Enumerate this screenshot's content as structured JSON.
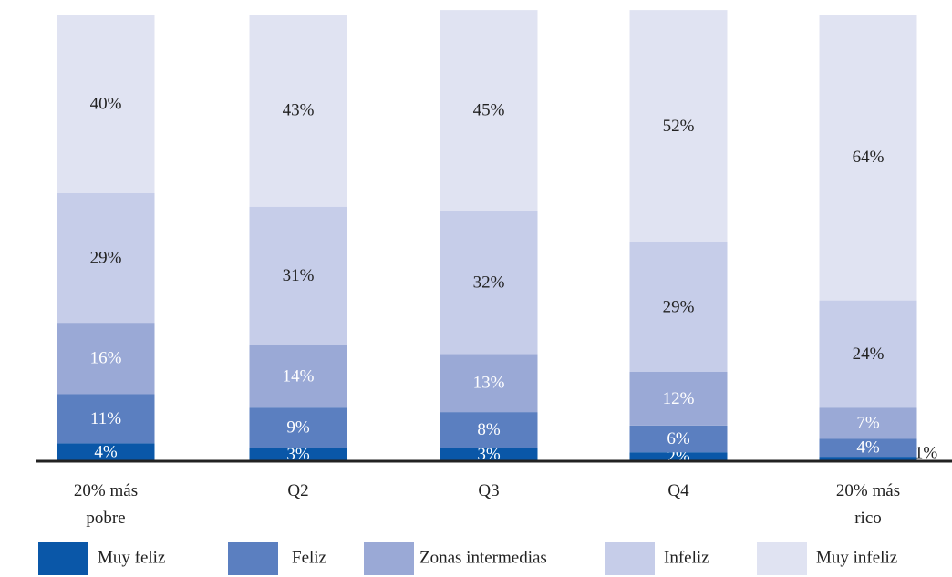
{
  "chart_data": {
    "type": "stacked_bar",
    "categories": [
      "20% más pobre",
      "Q2",
      "Q3",
      "Q4",
      "20% más rico"
    ],
    "series": [
      {
        "name": "Muy feliz",
        "color": "#0a57a8",
        "values": [
          4,
          3,
          3,
          2,
          1
        ],
        "value_labels": [
          "4%",
          "3%",
          "3%",
          "2%",
          "1%"
        ]
      },
      {
        "name": "Feliz",
        "color": "#5b7fc0",
        "values": [
          11,
          9,
          8,
          6,
          4
        ],
        "value_labels": [
          "11%",
          "9%",
          "8%",
          "6%",
          "4%"
        ]
      },
      {
        "name": "Zonas intermedias",
        "color": "#9aa9d6",
        "values": [
          16,
          14,
          13,
          12,
          7
        ],
        "value_labels": [
          "16%",
          "14%",
          "13%",
          "12%",
          "7%"
        ]
      },
      {
        "name": "Infeliz",
        "color": "#c6cde9",
        "values": [
          29,
          31,
          32,
          29,
          24
        ],
        "value_labels": [
          "29%",
          "31%",
          "32%",
          "29%",
          "24%"
        ]
      },
      {
        "name": "Muy infeliz",
        "color": "#e0e3f2",
        "values": [
          40,
          43,
          45,
          52,
          64
        ],
        "value_labels": [
          "40%",
          "43%",
          "45%",
          "52%",
          "64%"
        ]
      }
    ],
    "ylim": [
      0,
      100
    ],
    "legend": "bottom"
  }
}
